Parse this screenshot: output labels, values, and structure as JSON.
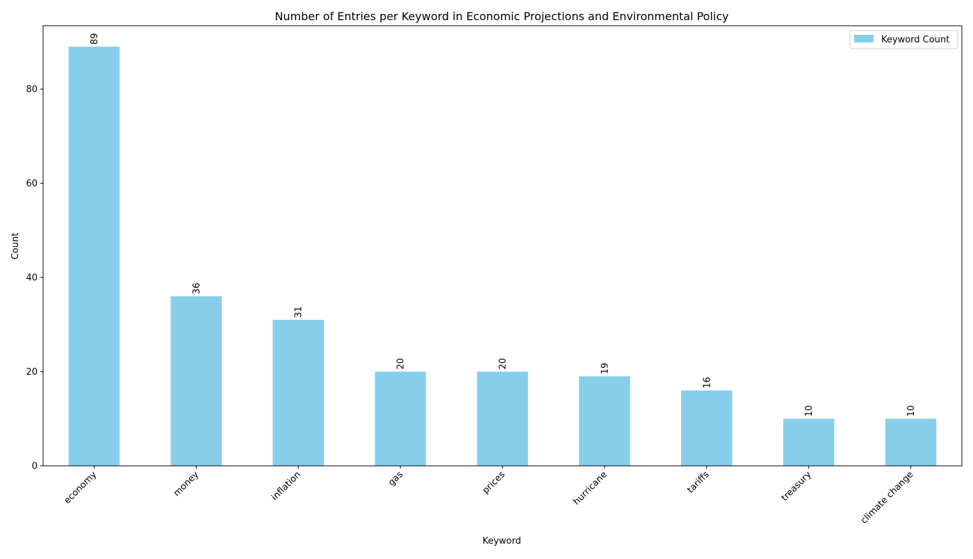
{
  "chart_data": {
    "type": "bar",
    "title": "Number of Entries per Keyword in Economic Projections and Environmental Policy",
    "xlabel": "Keyword",
    "ylabel": "Count",
    "categories": [
      "economy",
      "money",
      "inflation",
      "gas",
      "prices",
      "hurricane",
      "tariffs",
      "treasury",
      "climate change"
    ],
    "series": [
      {
        "name": "Keyword Count",
        "values": [
          89,
          36,
          31,
          20,
          20,
          19,
          16,
          10,
          10
        ],
        "color": "#87ceeb"
      }
    ],
    "ylim": [
      0,
      93.45
    ],
    "yticks": [
      0,
      20,
      40,
      60,
      80
    ],
    "grid": false,
    "legend_position": "top-right",
    "x_tick_rotation": 45,
    "data_label_rotation": 90
  }
}
